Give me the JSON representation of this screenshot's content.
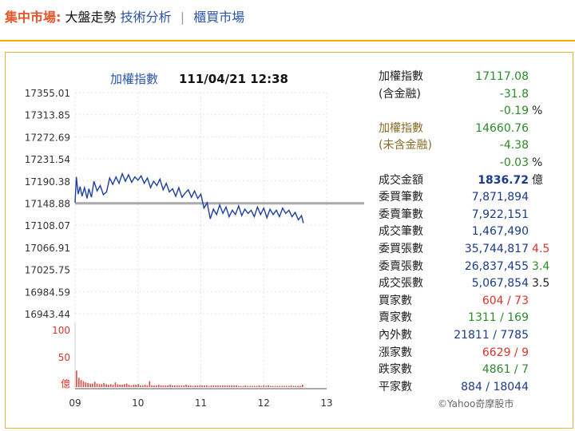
{
  "nav": {
    "title": "集中市場:",
    "current": "大盤走勢",
    "link_ta": "技術分析",
    "sep": "|",
    "link_otc": "櫃買市場"
  },
  "colors": {
    "accent": "#f0b000",
    "price_line": "#1f3f9c",
    "volume": "#d9534f",
    "baseline": "#aaaaaa"
  },
  "chart_data": {
    "type": "line",
    "title": "加權指數",
    "timestamp": "111/04/21 12:38",
    "ylim": [
      16943.44,
      17355.01
    ],
    "yticks": [
      "17355.01",
      "17313.85",
      "17272.69",
      "17231.54",
      "17190.38",
      "17148.88",
      "17108.07",
      "17066.91",
      "17025.75",
      "16984.59",
      "16943.44"
    ],
    "xticks": [
      "09",
      "10",
      "11",
      "12",
      "13"
    ],
    "reference": 17148.88,
    "x": [
      9.0,
      9.02,
      9.05,
      9.08,
      9.11,
      9.15,
      9.19,
      9.22,
      9.26,
      9.3,
      9.35,
      9.4,
      9.45,
      9.5,
      9.55,
      9.6,
      9.65,
      9.7,
      9.75,
      9.8,
      9.85,
      9.9,
      9.95,
      10.0,
      10.05,
      10.1,
      10.15,
      10.2,
      10.25,
      10.3,
      10.35,
      10.4,
      10.45,
      10.5,
      10.55,
      10.6,
      10.65,
      10.7,
      10.75,
      10.8,
      10.85,
      10.9,
      10.95,
      11.0,
      11.05,
      11.1,
      11.15,
      11.2,
      11.25,
      11.3,
      11.35,
      11.4,
      11.45,
      11.5,
      11.55,
      11.6,
      11.65,
      11.7,
      11.75,
      11.8,
      11.85,
      11.9,
      11.95,
      12.0,
      12.05,
      12.1,
      12.15,
      12.2,
      12.25,
      12.3,
      12.35,
      12.4,
      12.45,
      12.5,
      12.55,
      12.6,
      12.63
    ],
    "values": [
      17150,
      17198,
      17166,
      17180,
      17162,
      17178,
      17158,
      17176,
      17160,
      17190,
      17172,
      17182,
      17165,
      17170,
      17196,
      17184,
      17198,
      17186,
      17204,
      17190,
      17202,
      17188,
      17198,
      17192,
      17200,
      17186,
      17196,
      17178,
      17190,
      17182,
      17194,
      17174,
      17186,
      17170,
      17176,
      17162,
      17178,
      17160,
      17168,
      17174,
      17160,
      17172,
      17158,
      17166,
      17140,
      17150,
      17120,
      17138,
      17128,
      17146,
      17130,
      17142,
      17124,
      17136,
      17128,
      17144,
      17126,
      17138,
      17130,
      17136,
      17124,
      17142,
      17128,
      17140,
      17122,
      17138,
      17128,
      17136,
      17124,
      17140,
      17130,
      17136,
      17124,
      17132,
      17118,
      17126,
      17112
    ],
    "volume_label_top": "100",
    "volume_label_mid": "50",
    "volume_label_unit": "億",
    "volume_ylim": [
      0,
      100
    ],
    "volume_values": [
      28,
      16,
      12,
      10,
      8,
      7,
      6,
      6,
      9,
      6,
      5,
      5,
      7,
      5,
      4,
      5,
      4,
      8,
      5,
      4,
      4,
      5,
      6,
      4,
      3,
      4,
      4,
      5,
      3,
      3,
      4,
      3,
      10,
      3,
      3,
      3,
      4,
      3,
      3,
      3,
      3,
      4,
      3,
      3,
      3,
      3,
      3,
      3,
      4,
      3,
      3,
      2,
      3,
      3,
      3,
      3,
      3,
      3,
      2,
      3,
      3,
      3,
      3,
      3,
      3,
      3,
      3,
      3,
      3,
      3,
      3,
      2,
      2,
      2,
      3,
      2,
      2,
      2,
      2,
      2,
      3,
      2,
      3,
      2,
      3,
      2,
      2,
      2,
      2,
      2,
      2,
      2,
      2,
      2,
      3,
      2,
      2,
      2,
      2,
      4
    ]
  },
  "stats": [
    {
      "label": "加權指數",
      "value": "17117.08",
      "lc": "",
      "vc": "green",
      "bold": false,
      "ext": ""
    },
    {
      "label": "(含金融)",
      "value": "-31.8",
      "lc": "",
      "vc": "green",
      "bold": false,
      "ext": ""
    },
    {
      "label": "",
      "value": "-0.19",
      "lc": "",
      "vc": "green",
      "bold": false,
      "ext": "%"
    },
    {
      "label": "加權指數",
      "value": "14660.76",
      "lc": "olive",
      "vc": "green",
      "bold": false,
      "ext": ""
    },
    {
      "label": "(未含金融)",
      "value": "-4.38",
      "lc": "olive",
      "vc": "green",
      "bold": false,
      "ext": ""
    },
    {
      "label": "",
      "value": "-0.03",
      "lc": "",
      "vc": "green",
      "bold": false,
      "ext": "%"
    },
    {
      "label": "成交金額",
      "value": "1836.72",
      "lc": "",
      "vc": "navy",
      "bold": true,
      "ext": "億"
    },
    {
      "label": "委買筆數",
      "value": "7,871,894",
      "lc": "",
      "vc": "navy",
      "bold": false,
      "ext": ""
    },
    {
      "label": "委賣筆數",
      "value": "7,922,151",
      "lc": "",
      "vc": "navy",
      "bold": false,
      "ext": ""
    },
    {
      "label": "成交筆數",
      "value": "1,467,490",
      "lc": "",
      "vc": "navy",
      "bold": false,
      "ext": ""
    },
    {
      "label": "委買張數",
      "value": "35,744,817",
      "lc": "",
      "vc": "navy",
      "bold": false,
      "ext": "4.5",
      "extc": "red"
    },
    {
      "label": "委賣張數",
      "value": "26,837,455",
      "lc": "",
      "vc": "navy",
      "bold": false,
      "ext": "3.4",
      "extc": "green"
    },
    {
      "label": "成交張數",
      "value": "5,067,854",
      "lc": "",
      "vc": "navy",
      "bold": false,
      "ext": "3.5",
      "extc": ""
    },
    {
      "label": "買家數",
      "value": "604 / 73",
      "lc": "",
      "vc": "red",
      "bold": false,
      "ext": ""
    },
    {
      "label": "賣家數",
      "value": "1311 / 169",
      "lc": "",
      "vc": "green",
      "bold": false,
      "ext": ""
    },
    {
      "label": "內外數",
      "value": "21811 / 7785",
      "lc": "",
      "vc": "navy",
      "bold": false,
      "ext": ""
    },
    {
      "label": "漲家數",
      "value": "6629 / 9",
      "lc": "",
      "vc": "red",
      "bold": false,
      "ext": ""
    },
    {
      "label": "跌家數",
      "value": "4861 / 7",
      "lc": "",
      "vc": "green",
      "bold": false,
      "ext": ""
    },
    {
      "label": "平家數",
      "value": "884 / 18044",
      "lc": "",
      "vc": "navy",
      "bold": false,
      "ext": ""
    }
  ],
  "copyright": "©Yahoo奇摩股市"
}
